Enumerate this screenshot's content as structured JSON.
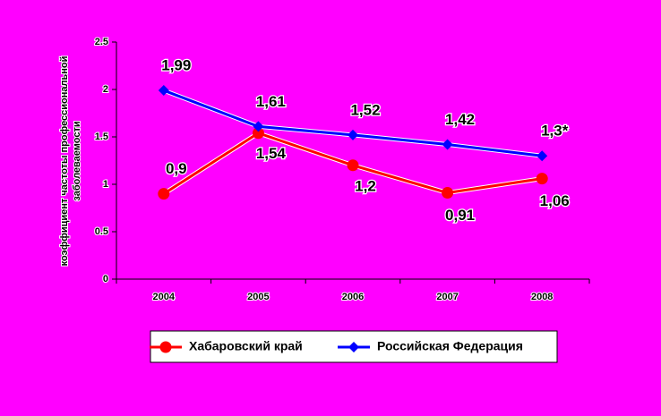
{
  "chart_data": {
    "type": "line",
    "y_label": [
      "коэффициент частоты профессиональной",
      "заболеваемости"
    ],
    "categories": [
      "2004",
      "2005",
      "2006",
      "2007",
      "2008"
    ],
    "series": [
      {
        "name": "Хабаровский край",
        "color": "#ff0000",
        "marker": "circle",
        "values": [
          0.9,
          1.54,
          1.2,
          0.91,
          1.06
        ],
        "value_labels": [
          "0,9",
          "1,54",
          "1,2",
          "0,91",
          "1,06"
        ]
      },
      {
        "name": "Российская Федерация",
        "color": "#0000ff",
        "marker": "diamond",
        "values": [
          1.99,
          1.61,
          1.52,
          1.42,
          1.3
        ],
        "value_labels": [
          "1,99",
          "1,61",
          "1,52",
          "1,42",
          "1,3*"
        ]
      }
    ],
    "ylim": [
      0,
      2.5
    ],
    "yticks": [
      0,
      0.5,
      1,
      1.5,
      2,
      2.5
    ],
    "grid": false,
    "legend": "bottom"
  }
}
